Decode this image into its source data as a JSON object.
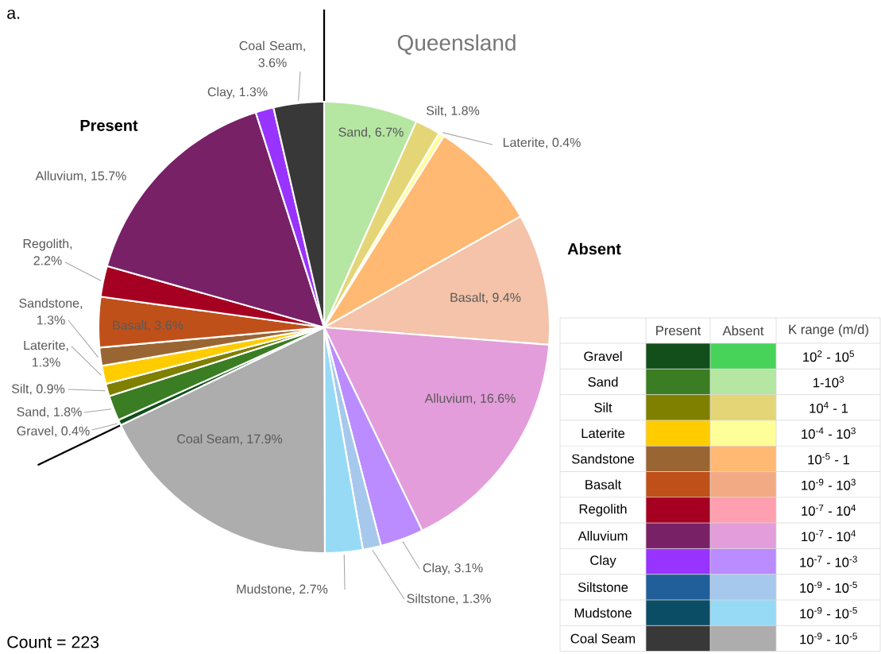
{
  "chart_data": [
    {
      "type": "pie",
      "title": "Queensland",
      "categories": [
        "Sand, 6.7%",
        "Silt, 1.8%",
        "Laterite, 0.4%",
        null,
        "Basalt, 9.4%",
        "Alluvium, 16.6%",
        "Clay, 3.1%",
        "Siltstone, 1.3%",
        "Mudstone, 2.7%",
        "Coal Seam, 17.9%",
        "Gravel, 0.4%",
        "Sand, 1.8%",
        "Silt, 0.9%",
        "Laterite, 1.3%",
        "Sandstone, 1.3%",
        "Basalt, 3.6%",
        "Regolith, 2.2%",
        "Alluvium, 15.7%",
        "Clay, 1.3%",
        "Coal Seam, 3.6%"
      ],
      "values": [
        6.7,
        1.8,
        0.4,
        7.9,
        9.4,
        16.6,
        3.1,
        1.3,
        2.7,
        17.9,
        0.4,
        1.8,
        0.9,
        1.3,
        1.3,
        3.6,
        2.2,
        15.7,
        1.3,
        3.6
      ],
      "colors": [
        "#b5e6a2",
        "#e4d677",
        "#ffff99",
        "#ffb973",
        "#f4c3a9",
        "#e39dda",
        "#ba8cff",
        "#a6c8ec",
        "#97daf6",
        "#adadad",
        "#124f1a",
        "#3a7d22",
        "#7f7f00",
        "#ffcc00",
        "#996633",
        "#c0501a",
        "#a50021",
        "#782167",
        "#9933ff",
        "#383838"
      ],
      "annotations": [
        "a.",
        "Count = 223",
        "Present",
        "Absent"
      ]
    },
    {
      "type": "other",
      "legend_title": "K range (m/d)",
      "categories": [
        "Gravel",
        "Sand",
        "Silt",
        "Laterite",
        "Sandstone",
        "Basalt",
        "Regolith",
        "Alluvium",
        "Clay",
        "Siltstone",
        "Mudstone",
        "Coal Seam"
      ],
      "series": [
        {
          "name": "Present",
          "values": [
            null,
            null,
            null,
            null,
            null,
            null,
            null,
            null,
            null,
            null,
            null,
            null
          ],
          "colors": [
            "#124f1a",
            "#3a7d22",
            "#7f7f00",
            "#ffcc00",
            "#996633",
            "#c0501a",
            "#a50021",
            "#782167",
            "#9933ff",
            "#215f9a",
            "#0c4d66",
            "#383838"
          ]
        },
        {
          "name": "Absent",
          "values": [
            null,
            null,
            null,
            null,
            null,
            null,
            null,
            null,
            null,
            null,
            null,
            null
          ],
          "colors": [
            "#47d35a",
            "#b5e6a2",
            "#e4d677",
            "#ffff99",
            "#ffb973",
            "#f2aa84",
            "#ff9fb0",
            "#e39dda",
            "#ba8cff",
            "#a6c8ec",
            "#97daf6",
            "#adadad"
          ]
        }
      ],
      "value_labels": [
        "10$^{2}$ - 10$^{5}$",
        "1-10$^{3}$",
        "10$^{4}$ - 1",
        "10$^{-4}$ - 10$^{3}$",
        "10$^{-5}$ - 1",
        "10$^{-9}$ - 10$^{3}$",
        "10$^{-7}$ - 10$^{4}$",
        "10$^{-7}$ - 10$^{4}$",
        "10$^{-7}$ - 10$^{-3}$",
        "10$^{-9}$ - 10$^{-5}$",
        "10$^{-9}$ - 10$^{-5}$",
        "10$^{-9}$ - 10$^{-5}$"
      ]
    }
  ]
}
